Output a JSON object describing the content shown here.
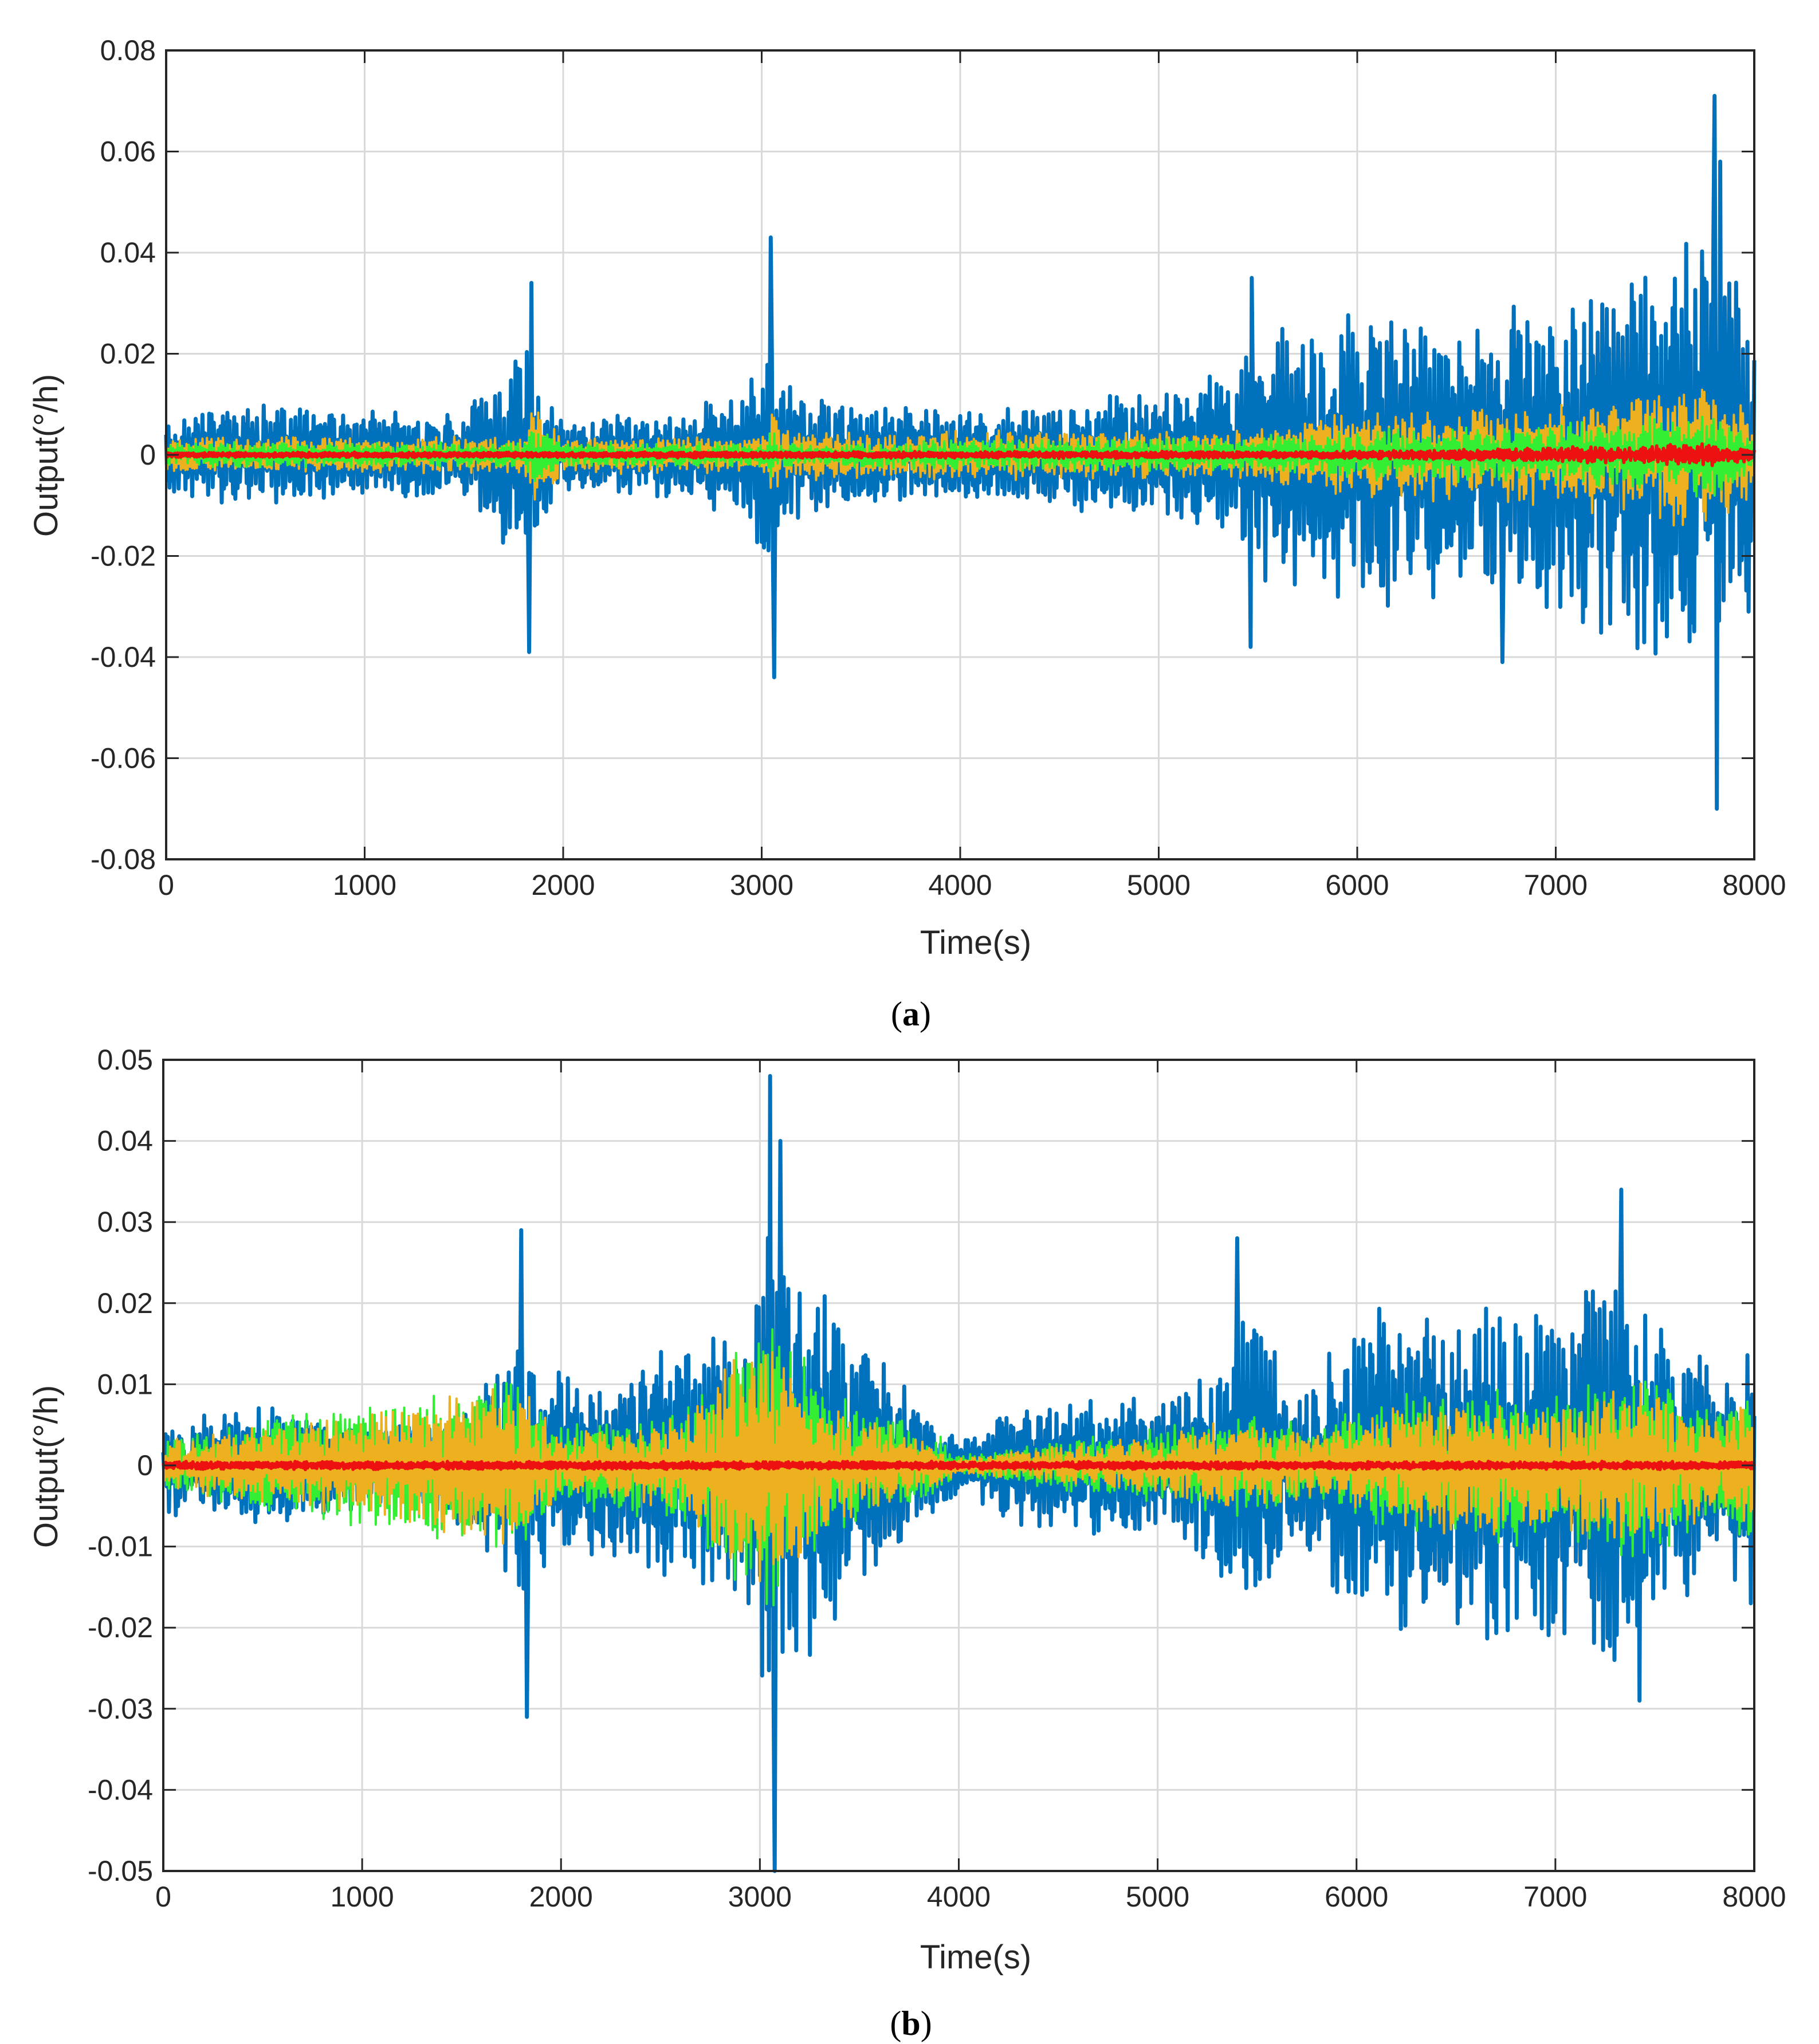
{
  "chart_data": [
    {
      "type": "line",
      "panel_label": "a",
      "caption_open": "(",
      "caption_close": ")",
      "xlabel": "Time(s)",
      "ylabel": "Output(°/h)",
      "xlim": [
        0,
        8000
      ],
      "ylim": [
        -0.08,
        0.08
      ],
      "grid": true,
      "xticks": [
        0,
        1000,
        2000,
        3000,
        4000,
        5000,
        6000,
        7000,
        8000
      ],
      "xtick_labels": [
        "0",
        "1000",
        "2000",
        "3000",
        "4000",
        "5000",
        "6000",
        "7000",
        "8000"
      ],
      "yticks": [
        -0.08,
        -0.06,
        -0.04,
        -0.02,
        0,
        0.02,
        0.04,
        0.06,
        0.08
      ],
      "ytick_labels": [
        "-0.08",
        "-0.06",
        "-0.04",
        "-0.02",
        "0",
        "0.02",
        "0.04",
        "0.06",
        "0.08"
      ],
      "series": [
        {
          "name": "blue",
          "color": "#0072BD",
          "amplitude_envelope": {
            "x": [
              0,
              500,
              1000,
              1500,
              1800,
              1900,
              2000,
              2500,
              2900,
              3000,
              3050,
              3100,
              3500,
              4000,
              4500,
              5000,
              5400,
              5500,
              6000,
              6500,
              7000,
              7400,
              7600,
              7800,
              8000
            ],
            "amp": [
              0.007,
              0.008,
              0.007,
              0.007,
              0.018,
              0.012,
              0.006,
              0.007,
              0.01,
              0.016,
              0.024,
              0.012,
              0.008,
              0.008,
              0.009,
              0.01,
              0.014,
              0.02,
              0.024,
              0.024,
              0.026,
              0.032,
              0.036,
              0.038,
              0.024
            ]
          },
          "peaks": [
            {
              "x": 1840,
              "y": 0.034
            },
            {
              "x": 1830,
              "y": -0.039
            },
            {
              "x": 3045,
              "y": 0.043
            },
            {
              "x": 3060,
              "y": -0.044
            },
            {
              "x": 5470,
              "y": 0.035
            },
            {
              "x": 5460,
              "y": -0.038
            },
            {
              "x": 7800,
              "y": 0.071
            },
            {
              "x": 7810,
              "y": -0.07
            },
            {
              "x": 7830,
              "y": 0.058
            },
            {
              "x": 6730,
              "y": -0.041
            }
          ]
        },
        {
          "name": "yellow",
          "color": "#EDB120",
          "amplitude_envelope": {
            "x": [
              0,
              1800,
              1850,
              2000,
              3000,
              3050,
              3100,
              5400,
              6000,
              7000,
              7500,
              7800,
              8000
            ],
            "amp": [
              0.003,
              0.003,
              0.009,
              0.003,
              0.003,
              0.008,
              0.004,
              0.004,
              0.007,
              0.008,
              0.011,
              0.012,
              0.006
            ]
          }
        },
        {
          "name": "green",
          "color": "#33EE33",
          "amplitude_envelope": {
            "x": [
              0,
              1800,
              1850,
              2000,
              3000,
              3050,
              3100,
              5400,
              6000,
              7000,
              7500,
              7800,
              8000
            ],
            "amp": [
              0.002,
              0.002,
              0.005,
              0.002,
              0.002,
              0.005,
              0.002,
              0.003,
              0.004,
              0.005,
              0.006,
              0.007,
              0.003
            ]
          }
        },
        {
          "name": "red",
          "color": "#EE1111",
          "amplitude_envelope": {
            "x": [
              0,
              6000,
              7000,
              7500,
              7800,
              8000
            ],
            "amp": [
              0.0004,
              0.0006,
              0.0012,
              0.0016,
              0.002,
              0.0008
            ]
          }
        }
      ]
    },
    {
      "type": "line",
      "panel_label": "b",
      "caption_open": "(",
      "caption_close": ")",
      "xlabel": "Time(s)",
      "ylabel": "Output(°/h)",
      "xlim": [
        0,
        8000
      ],
      "ylim": [
        -0.05,
        0.05
      ],
      "grid": true,
      "xticks": [
        0,
        1000,
        2000,
        3000,
        4000,
        5000,
        6000,
        7000,
        8000
      ],
      "xtick_labels": [
        "0",
        "1000",
        "2000",
        "3000",
        "4000",
        "5000",
        "6000",
        "7000",
        "8000"
      ],
      "yticks": [
        -0.05,
        -0.04,
        -0.03,
        -0.02,
        -0.01,
        0,
        0.01,
        0.02,
        0.03,
        0.04,
        0.05
      ],
      "ytick_labels": [
        "-0.05",
        "-0.04",
        "-0.03",
        "-0.02",
        "-0.01",
        "0",
        "0.01",
        "0.02",
        "0.03",
        "0.04",
        "0.05"
      ],
      "series": [
        {
          "name": "blue",
          "color": "#0072BD",
          "amplitude_envelope": {
            "x": [
              0,
              400,
              800,
              1200,
              1500,
              1800,
              1900,
              2200,
              2600,
              2900,
              3050,
              3200,
              3500,
              3800,
              4000,
              4300,
              4700,
              5000,
              5300,
              5450,
              5700,
              6000,
              6300,
              6600,
              6900,
              7000,
              7300,
              7600,
              7800,
              8000
            ],
            "amp": [
              0.005,
              0.006,
              0.005,
              0.004,
              0.006,
              0.014,
              0.01,
              0.009,
              0.013,
              0.016,
              0.03,
              0.02,
              0.014,
              0.006,
              0.003,
              0.006,
              0.007,
              0.007,
              0.01,
              0.018,
              0.008,
              0.016,
              0.017,
              0.018,
              0.016,
              0.018,
              0.02,
              0.015,
              0.01,
              0.014
            ]
          },
          "peaks": [
            {
              "x": 1800,
              "y": 0.029
            },
            {
              "x": 1830,
              "y": -0.031
            },
            {
              "x": 3050,
              "y": 0.048
            },
            {
              "x": 3075,
              "y": -0.05
            },
            {
              "x": 3100,
              "y": 0.04
            },
            {
              "x": 5400,
              "y": 0.028
            },
            {
              "x": 7330,
              "y": 0.034
            },
            {
              "x": 7420,
              "y": -0.029
            }
          ]
        },
        {
          "name": "green",
          "color": "#33EE33",
          "amplitude_envelope": {
            "x": [
              0,
              1800,
              2000,
              2600,
              3050,
              3300,
              3900,
              4000,
              5000,
              5450,
              5800,
              6200,
              6700,
              7000,
              7400,
              7800,
              8000
            ],
            "amp": [
              0.003,
              0.009,
              0.004,
              0.006,
              0.016,
              0.008,
              0.003,
              0.001,
              0.004,
              0.006,
              0.004,
              0.007,
              0.009,
              0.007,
              0.01,
              0.006,
              0.008
            ]
          }
        },
        {
          "name": "yellow",
          "color": "#EDB120",
          "amplitude_envelope": {
            "x": [
              0,
              1800,
              2000,
              2600,
              3050,
              3300,
              3900,
              4000,
              5000,
              5450,
              5800,
              6200,
              6700,
              7000,
              7400,
              7800,
              8000
            ],
            "amp": [
              0.0025,
              0.008,
              0.003,
              0.005,
              0.014,
              0.007,
              0.002,
              0.0008,
              0.003,
              0.005,
              0.003,
              0.006,
              0.008,
              0.006,
              0.009,
              0.005,
              0.007
            ]
          }
        },
        {
          "name": "red",
          "color": "#EE1111",
          "amplitude_envelope": {
            "x": [
              0,
              8000
            ],
            "amp": [
              0.0004,
              0.0004
            ]
          }
        }
      ]
    }
  ]
}
